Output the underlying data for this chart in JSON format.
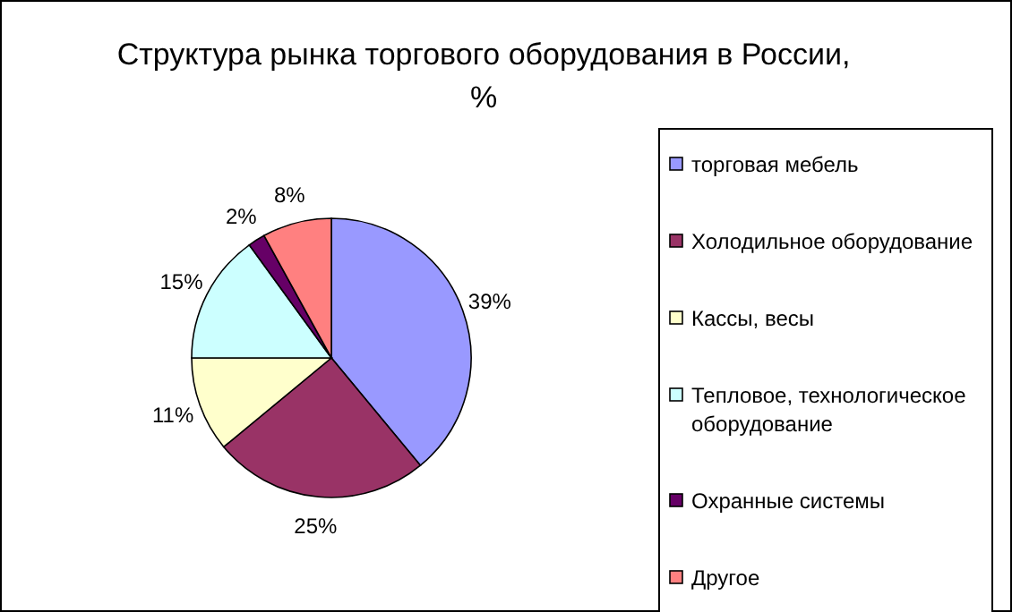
{
  "chart_data": {
    "type": "pie",
    "title": "Структура рынка торгового оборудования в России, %",
    "categories": [
      "торговая мебель",
      "Холодильное оборудование",
      "Кассы, весы",
      "Тепловое, технологическое оборудование",
      "Охранные системы",
      "Другое"
    ],
    "values": [
      39,
      25,
      11,
      15,
      2,
      8
    ],
    "colors": [
      "#9999ff",
      "#993366",
      "#ffffcc",
      "#ccffff",
      "#660066",
      "#ff8080"
    ],
    "value_labels": [
      "39%",
      "25%",
      "11%",
      "15%",
      "2%",
      "8%"
    ],
    "legend": "right"
  }
}
